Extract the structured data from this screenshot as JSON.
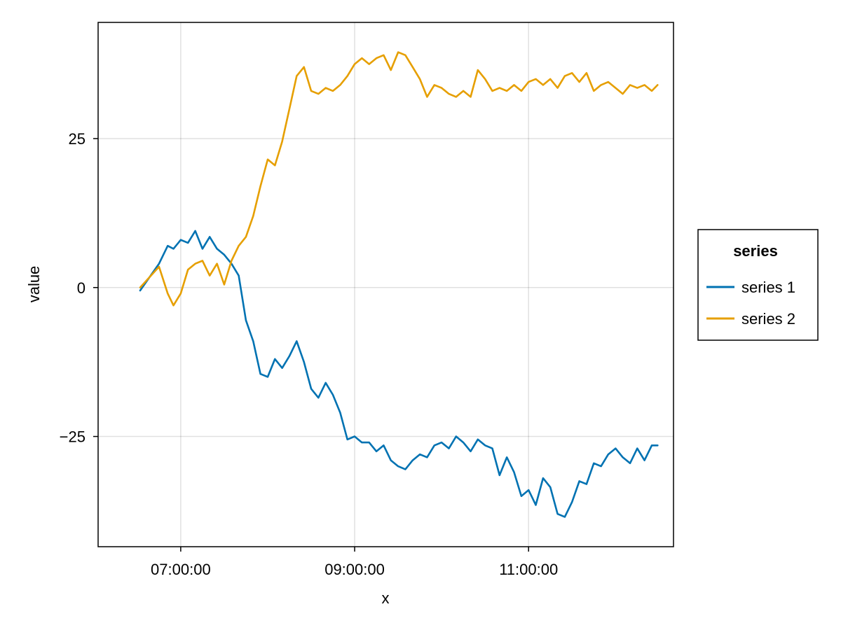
{
  "chart_data": {
    "type": "line",
    "title": "",
    "xlabel": "x",
    "ylabel": "value",
    "xlim": [
      "06:03:00",
      "12:40:00"
    ],
    "ylim": [
      -43.5,
      44.5
    ],
    "x_ticks": [
      "07:00:00",
      "09:00:00",
      "11:00:00"
    ],
    "y_ticks": [
      -25,
      0,
      25
    ],
    "y_tick_labels": [
      "−25",
      "0",
      "25"
    ],
    "grid": true,
    "legend": {
      "title": "series",
      "position": "right"
    },
    "colors": {
      "series 1": "#0072b2",
      "series 2": "#e69f00"
    },
    "x": [
      "06:32:00",
      "06:45:00",
      "06:51:00",
      "06:55:00",
      "07:00:00",
      "07:05:00",
      "07:10:00",
      "07:15:00",
      "07:20:00",
      "07:25:00",
      "07:30:00",
      "07:35:00",
      "07:40:00",
      "07:45:00",
      "07:50:00",
      "07:55:00",
      "08:00:00",
      "08:05:00",
      "08:10:00",
      "08:15:00",
      "08:20:00",
      "08:25:00",
      "08:30:00",
      "08:35:00",
      "08:40:00",
      "08:45:00",
      "08:50:00",
      "08:55:00",
      "09:00:00",
      "09:05:00",
      "09:10:00",
      "09:15:00",
      "09:20:00",
      "09:25:00",
      "09:30:00",
      "09:35:00",
      "09:40:00",
      "09:45:00",
      "09:50:00",
      "09:55:00",
      "10:00:00",
      "10:05:00",
      "10:10:00",
      "10:15:00",
      "10:20:00",
      "10:25:00",
      "10:30:00",
      "10:35:00",
      "10:40:00",
      "10:45:00",
      "10:50:00",
      "10:55:00",
      "11:00:00",
      "11:05:00",
      "11:10:00",
      "11:15:00",
      "11:20:00",
      "11:25:00",
      "11:30:00",
      "11:35:00",
      "11:40:00",
      "11:45:00",
      "11:50:00",
      "11:55:00",
      "12:00:00",
      "12:05:00",
      "12:10:00",
      "12:15:00",
      "12:20:00",
      "12:25:00",
      "12:29:00"
    ],
    "series": [
      {
        "name": "series 1",
        "values": [
          -0.5,
          4.0,
          7.0,
          6.5,
          8.0,
          7.5,
          9.5,
          6.5,
          8.5,
          6.5,
          5.5,
          4.0,
          2.0,
          -5.5,
          -9.0,
          -14.5,
          -15.0,
          -12.0,
          -13.5,
          -11.5,
          -9.0,
          -12.5,
          -17.0,
          -18.5,
          -16.0,
          -18.0,
          -21.0,
          -25.5,
          -25.0,
          -26.0,
          -26.0,
          -27.5,
          -26.5,
          -29.0,
          -30.0,
          -30.5,
          -29.0,
          -28.0,
          -28.5,
          -26.5,
          -26.0,
          -27.0,
          -25.0,
          -26.0,
          -27.5,
          -25.5,
          -26.5,
          -27.0,
          -31.5,
          -28.5,
          -31.0,
          -35.0,
          -34.0,
          -36.5,
          -32.0,
          -33.5,
          -38.0,
          -38.5,
          -36.0,
          -32.5,
          -33.0,
          -29.5,
          -30.0,
          -28.0,
          -27.0,
          -28.5,
          -29.5,
          -27.0,
          -29.0,
          -26.5,
          -26.5
        ]
      },
      {
        "name": "series 2",
        "values": [
          0.0,
          3.5,
          -1.0,
          -3.0,
          -1.0,
          3.0,
          4.0,
          4.5,
          2.0,
          4.0,
          0.5,
          4.5,
          7.0,
          8.5,
          12.0,
          17.0,
          21.5,
          20.5,
          24.5,
          30.0,
          35.5,
          37.0,
          33.0,
          32.5,
          33.5,
          33.0,
          34.0,
          35.5,
          37.5,
          38.5,
          37.5,
          38.5,
          39.0,
          36.5,
          39.5,
          39.0,
          37.0,
          35.0,
          32.0,
          34.0,
          33.5,
          32.5,
          32.0,
          33.0,
          32.0,
          36.5,
          35.0,
          33.0,
          33.5,
          33.0,
          34.0,
          33.0,
          34.5,
          35.0,
          34.0,
          35.0,
          33.5,
          35.5,
          36.0,
          34.5,
          36.0,
          33.0,
          34.0,
          34.5,
          33.5,
          32.5,
          34.0,
          33.5,
          34.0,
          33.0,
          34.0
        ]
      }
    ]
  }
}
